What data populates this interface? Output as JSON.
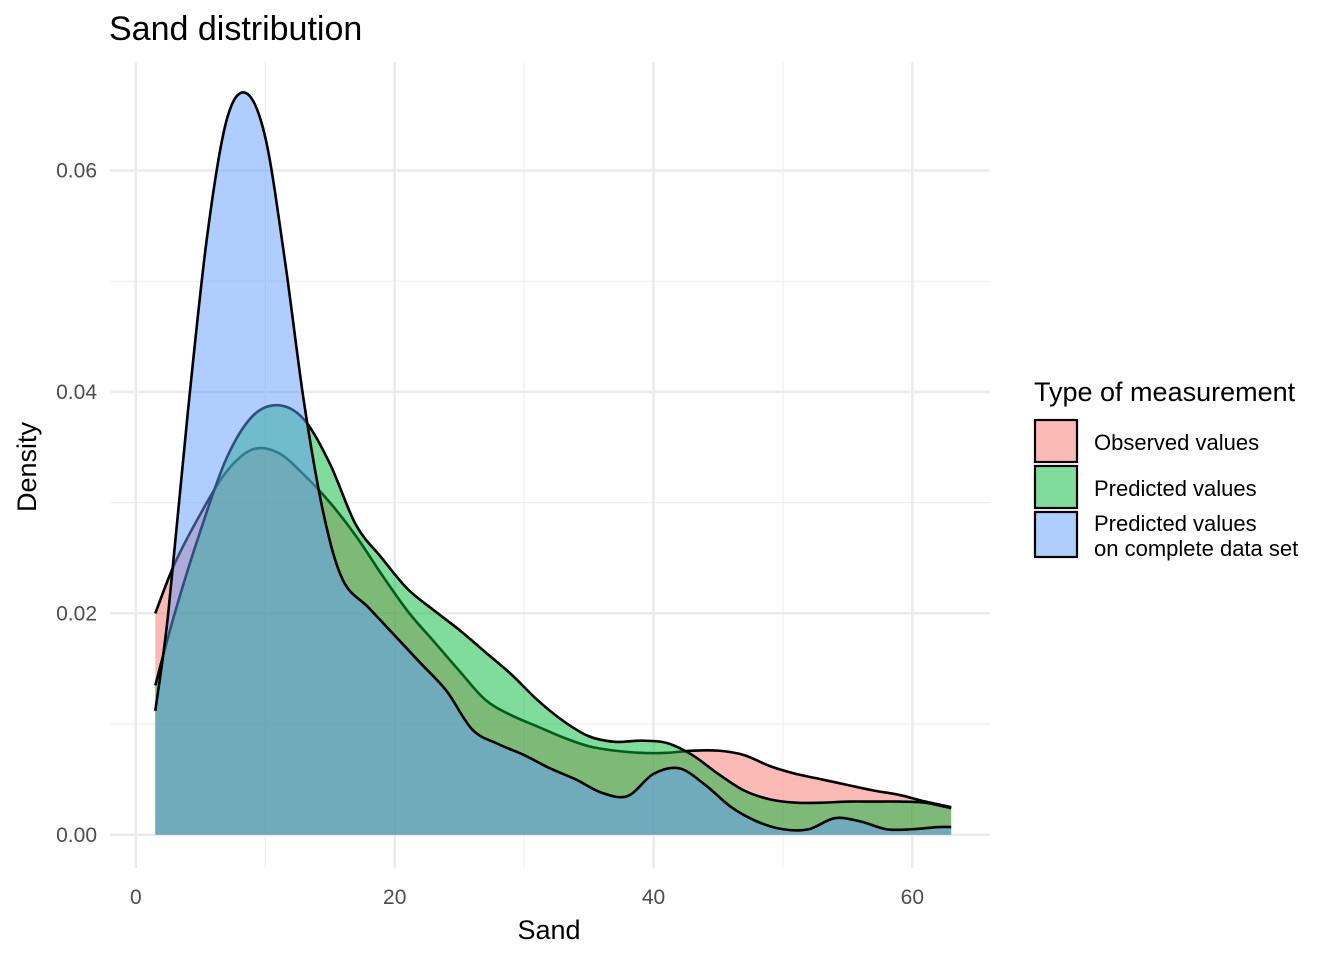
{
  "chart_data": {
    "type": "area",
    "title": "Sand distribution",
    "xlabel": "Sand",
    "ylabel": "Density",
    "xlim": [
      -2,
      66
    ],
    "ylim": [
      -0.003,
      0.0698
    ],
    "xticks": [
      0,
      20,
      40,
      60
    ],
    "xtick_labels": [
      "0",
      "20",
      "40",
      "60"
    ],
    "yticks": [
      0.0,
      0.02,
      0.04,
      0.06
    ],
    "ytick_labels": [
      "0.00",
      "0.02",
      "0.04",
      "0.06"
    ],
    "grid": true,
    "legend_position": "right",
    "legend_title": "Type of measurement",
    "series": [
      {
        "name": "Observed values",
        "color": "#F8766D",
        "x": [
          1.5,
          3,
          5,
          7,
          9,
          11,
          13,
          15,
          17,
          19,
          21,
          23,
          25,
          27,
          29,
          31,
          33,
          35,
          37,
          39,
          41,
          43,
          45,
          47,
          49,
          51,
          53,
          55,
          57,
          59,
          61,
          63
        ],
        "y": [
          0.02,
          0.0245,
          0.029,
          0.0328,
          0.0348,
          0.0345,
          0.0325,
          0.03,
          0.027,
          0.0235,
          0.0202,
          0.0175,
          0.0148,
          0.0122,
          0.0108,
          0.0098,
          0.0088,
          0.008,
          0.0076,
          0.0074,
          0.0074,
          0.0076,
          0.0076,
          0.0072,
          0.0062,
          0.0055,
          0.005,
          0.0045,
          0.004,
          0.0036,
          0.003,
          0.0025
        ]
      },
      {
        "name": "Predicted values",
        "color": "#00BA38",
        "x": [
          1.5,
          3,
          5,
          7,
          9,
          11,
          13,
          15,
          17,
          19,
          21,
          23,
          25,
          27,
          29,
          31,
          33,
          35,
          37,
          39,
          41,
          43,
          45,
          47,
          49,
          51,
          53,
          55,
          57,
          59,
          61,
          63
        ],
        "y": [
          0.0135,
          0.02,
          0.0275,
          0.034,
          0.0378,
          0.0388,
          0.0375,
          0.0335,
          0.028,
          0.025,
          0.0222,
          0.0203,
          0.0185,
          0.0165,
          0.0145,
          0.0122,
          0.0103,
          0.0089,
          0.0084,
          0.0085,
          0.0083,
          0.0072,
          0.0055,
          0.004,
          0.0032,
          0.0029,
          0.0029,
          0.003,
          0.003,
          0.003,
          0.0029,
          0.0024
        ]
      },
      {
        "name": "Predicted values\non complete data set",
        "color": "#619CFF",
        "x": [
          1.5,
          2.5,
          4,
          5.5,
          7,
          8.5,
          10,
          11.5,
          13,
          14.5,
          16,
          18,
          20,
          22,
          24,
          26,
          28,
          30,
          32,
          34,
          36,
          38,
          40,
          42,
          44,
          46,
          48,
          50,
          52,
          54,
          56,
          58,
          60,
          62,
          63
        ],
        "y": [
          0.0112,
          0.02,
          0.038,
          0.054,
          0.0645,
          0.067,
          0.063,
          0.052,
          0.039,
          0.029,
          0.023,
          0.0205,
          0.018,
          0.0155,
          0.013,
          0.0095,
          0.0082,
          0.0072,
          0.006,
          0.005,
          0.0038,
          0.0035,
          0.0055,
          0.006,
          0.0045,
          0.0025,
          0.0012,
          0.0005,
          0.0005,
          0.0015,
          0.0012,
          0.0005,
          0.0005,
          0.0007,
          0.0007
        ]
      }
    ]
  },
  "legend": {
    "title": "Type of measurement",
    "items": [
      {
        "label_line1": "Observed values",
        "label_line2": ""
      },
      {
        "label_line1": "Predicted values",
        "label_line2": ""
      },
      {
        "label_line1": "Predicted values",
        "label_line2": "on complete data set"
      }
    ]
  }
}
